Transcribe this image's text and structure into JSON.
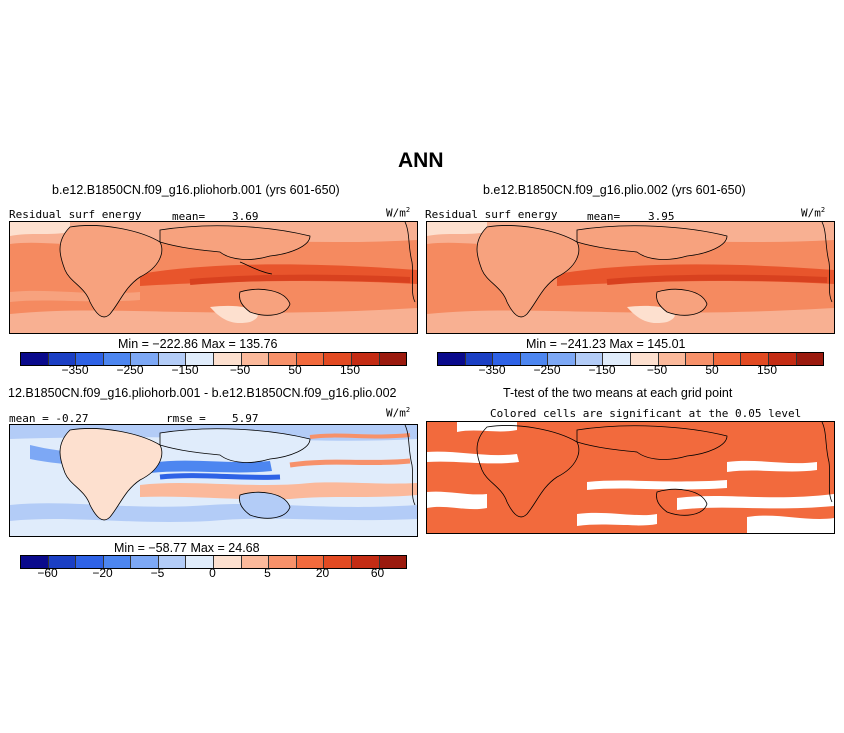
{
  "figure": {
    "title": "ANN"
  },
  "panels": [
    {
      "case": "b.e12.B1850CN.f09_g16.pliohorb.001 (yrs 601-650)",
      "left": "Residual surf energy",
      "mid": "mean=",
      "midval": "3.69",
      "units": "W/m",
      "units_sup": "2",
      "minmax": "Min = −222.86  Max = 135.76"
    },
    {
      "case": "b.e12.B1850CN.f09_g16.plio.002 (yrs 601-650)",
      "left": "Residual surf energy",
      "mid": "mean=",
      "midval": "3.95",
      "units": "W/m",
      "units_sup": "2",
      "minmax": "Min = −241.23  Max = 145.01"
    },
    {
      "case": "12.B1850CN.f09_g16.pliohorb.001 - b.e12.B1850CN.f09_g16.plio.002",
      "left": "mean =  -0.27",
      "mid": "rmse =",
      "midval": "5.97",
      "units": "W/m",
      "units_sup": "2",
      "minmax": "Min = −58.77  Max =  24.68"
    },
    {
      "case": "T-test of the two means at each grid point",
      "note": "Colored cells are significant at the 0.05 level"
    }
  ],
  "colorbars": {
    "abs_colors": [
      "#0a0a8c",
      "#1b3fc4",
      "#2e62e6",
      "#4d86f0",
      "#7da8f5",
      "#b3ccf7",
      "#e0ecfb",
      "#fde0cf",
      "#fbb99b",
      "#f7916a",
      "#f26a3d",
      "#e24a22",
      "#c42c14",
      "#9b1a0e"
    ],
    "abs_ticks": [
      "−350",
      "−250",
      "−150",
      "−50",
      "50",
      "150"
    ],
    "diff_colors": [
      "#0a0a8c",
      "#1b3fc4",
      "#2e62e6",
      "#4d86f0",
      "#7da8f5",
      "#b3ccf7",
      "#e0ecfb",
      "#fde0cf",
      "#fbb99b",
      "#f7916a",
      "#f26a3d",
      "#e24a22",
      "#c42c14",
      "#9b1a0e"
    ],
    "diff_ticks": [
      "−60",
      "−20",
      "−5",
      "0",
      "5",
      "20",
      "60"
    ]
  },
  "colors": {
    "significant": "#f26a3d",
    "land": "#f7a27e",
    "ocean_warm": "#f58a60",
    "core": "#e8552c"
  }
}
